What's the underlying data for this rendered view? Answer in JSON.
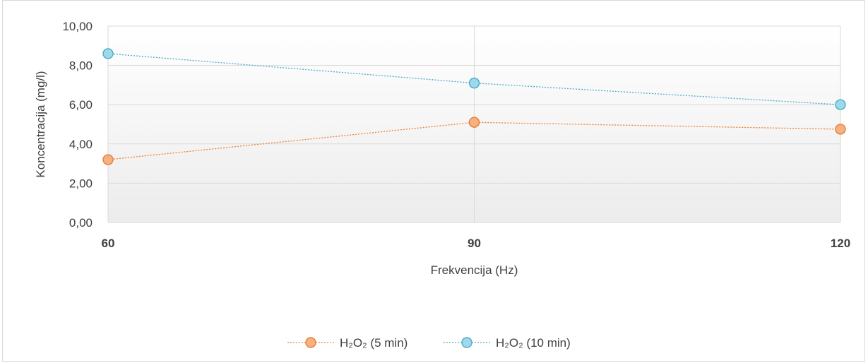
{
  "chart_data": {
    "type": "line",
    "categories": [
      "60",
      "90",
      "120"
    ],
    "series": [
      {
        "name": "H₂O₂ (5 min)",
        "values": [
          3.2,
          5.1,
          4.75
        ],
        "color": "#f4b183",
        "stroke": "#ed7d31"
      },
      {
        "name": "H₂O₂ (10 min)",
        "values": [
          8.6,
          7.1,
          6.0
        ],
        "color": "#9dd9ea",
        "stroke": "#4bacc6"
      }
    ],
    "y_ticks": [
      "0,00",
      "2,00",
      "4,00",
      "6,00",
      "8,00",
      "10,00"
    ],
    "ylim": [
      0,
      10
    ],
    "xlabel": "Frekvencija (Hz)",
    "ylabel": "Koncentracija (mg/l)",
    "grid": true,
    "legend_position": "bottom"
  }
}
